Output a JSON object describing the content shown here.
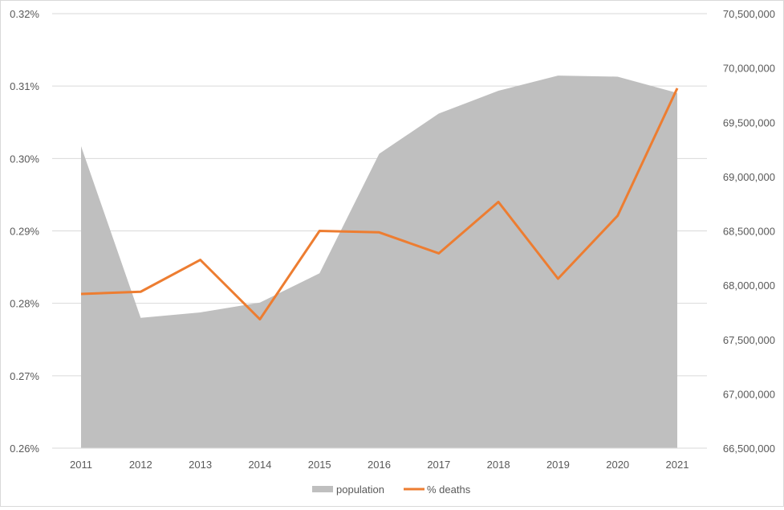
{
  "chart_data": {
    "type": "area+line",
    "title": "",
    "x": [
      "2011",
      "2012",
      "2013",
      "2014",
      "2015",
      "2016",
      "2017",
      "2018",
      "2019",
      "2020",
      "2021"
    ],
    "series": [
      {
        "name": "population",
        "type": "area",
        "axis": "right",
        "color": "#bfbfbf",
        "values": [
          69280000,
          67700000,
          67750000,
          67840000,
          68110000,
          69210000,
          69580000,
          69790000,
          69930000,
          69920000,
          69770000
        ]
      },
      {
        "name": "% deaths",
        "type": "line",
        "axis": "left",
        "color": "#ed7d31",
        "values": [
          0.2813,
          0.2816,
          0.286,
          0.2778,
          0.29,
          0.2898,
          0.2869,
          0.294,
          0.2834,
          0.2921,
          0.3097
        ]
      }
    ],
    "y_left": {
      "ylim": [
        0.26,
        0.32
      ],
      "ticks": [
        "0.26%",
        "0.27%",
        "0.28%",
        "0.29%",
        "0.30%",
        "0.31%",
        "0.32%"
      ]
    },
    "y_right": {
      "ylim": [
        66500000,
        70500000
      ],
      "ticks": [
        "66,500,000",
        "67,000,000",
        "67,500,000",
        "68,000,000",
        "68,500,000",
        "69,000,000",
        "69,500,000",
        "70,000,000",
        "70,500,000"
      ]
    },
    "grid": true,
    "legend": "bottom"
  }
}
